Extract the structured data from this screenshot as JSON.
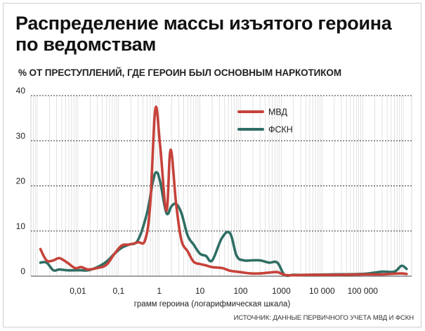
{
  "chart_data": {
    "type": "line",
    "title": "Распределение массы изъятого героина по ведомствам",
    "subtitle": "% ОТ ПРЕСТУПЛЕНИЙ, ГДЕ ГЕРОИН БЫЛ ОСНОВНЫМ НАРКОТИКОМ",
    "xlabel": "грамм героина (логарифмическая шкала)",
    "ylabel": "",
    "x_scale": "log",
    "xlim": [
      0.0007,
      1600000
    ],
    "ylim": [
      0,
      40
    ],
    "x_ticks": [
      {
        "value": 0.01,
        "label": "0,01"
      },
      {
        "value": 0.1,
        "label": "0,1"
      },
      {
        "value": 1,
        "label": "1"
      },
      {
        "value": 10,
        "label": "10"
      },
      {
        "value": 100,
        "label": "100"
      },
      {
        "value": 1000,
        "label": "1000"
      },
      {
        "value": 10000,
        "label": "10 000"
      },
      {
        "value": 100000,
        "label": "100 000"
      }
    ],
    "y_ticks": [
      {
        "value": 0,
        "label": "0"
      },
      {
        "value": 10,
        "label": "10"
      },
      {
        "value": 20,
        "label": "20"
      },
      {
        "value": 30,
        "label": "30"
      },
      {
        "value": 40,
        "label": "40"
      }
    ],
    "grid": {
      "vertical": true,
      "horizontal": true
    },
    "legend_position": "top-right",
    "source": "ИСТОЧНИК: ДАННЫЕ ПЕРВИЧНОГО УЧЕТА МВД И ФСКН",
    "series": [
      {
        "name": "МВД",
        "color": "#c6423a",
        "x": [
          0.0012,
          0.0017,
          0.0025,
          0.0035,
          0.0055,
          0.0085,
          0.012,
          0.018,
          0.03,
          0.05,
          0.08,
          0.12,
          0.18,
          0.3,
          0.45,
          0.6,
          0.8,
          1.05,
          1.5,
          1.9,
          2.6,
          3.5,
          5,
          7,
          10,
          14,
          20,
          35,
          55,
          80,
          120,
          180,
          300,
          500,
          800,
          1200,
          2000,
          5000,
          20000,
          100000,
          300000,
          800000,
          1200000
        ],
        "y": [
          6,
          3.5,
          3.5,
          4,
          3,
          1.8,
          2,
          1.5,
          1.8,
          2.5,
          5,
          6.8,
          7,
          7.5,
          8,
          16,
          37,
          29,
          14.5,
          28,
          16,
          8,
          5.5,
          3.2,
          2.7,
          2.4,
          2,
          1.8,
          1.2,
          1,
          0.8,
          0.6,
          0.6,
          0.8,
          0.9,
          0.3,
          0.2,
          0.3,
          0.3,
          0.4,
          0.4,
          0.6,
          0.5
        ]
      },
      {
        "name": "ФСКН",
        "color": "#2f6e64",
        "x": [
          0.0012,
          0.0017,
          0.0025,
          0.0035,
          0.0055,
          0.0085,
          0.012,
          0.018,
          0.03,
          0.05,
          0.08,
          0.12,
          0.18,
          0.3,
          0.5,
          0.7,
          0.85,
          1.05,
          1.5,
          2,
          2.6,
          3.5,
          5,
          7,
          10,
          14,
          20,
          35,
          55,
          80,
          120,
          180,
          300,
          500,
          800,
          1200,
          2000,
          5000,
          20000,
          100000,
          300000,
          600000,
          900000,
          1200000
        ],
        "y": [
          3,
          3,
          1.3,
          1.5,
          1.3,
          1.3,
          1.3,
          1.3,
          2,
          3.2,
          5,
          6.3,
          7,
          8,
          14,
          21,
          23,
          21,
          14,
          15.5,
          16,
          14,
          9,
          7,
          5,
          4.5,
          3.5,
          8.5,
          9.5,
          4.5,
          3.5,
          3.5,
          3.5,
          3,
          3,
          0.3,
          0.3,
          0.3,
          0.4,
          0.5,
          1,
          1,
          2.3,
          1.6
        ]
      }
    ]
  }
}
